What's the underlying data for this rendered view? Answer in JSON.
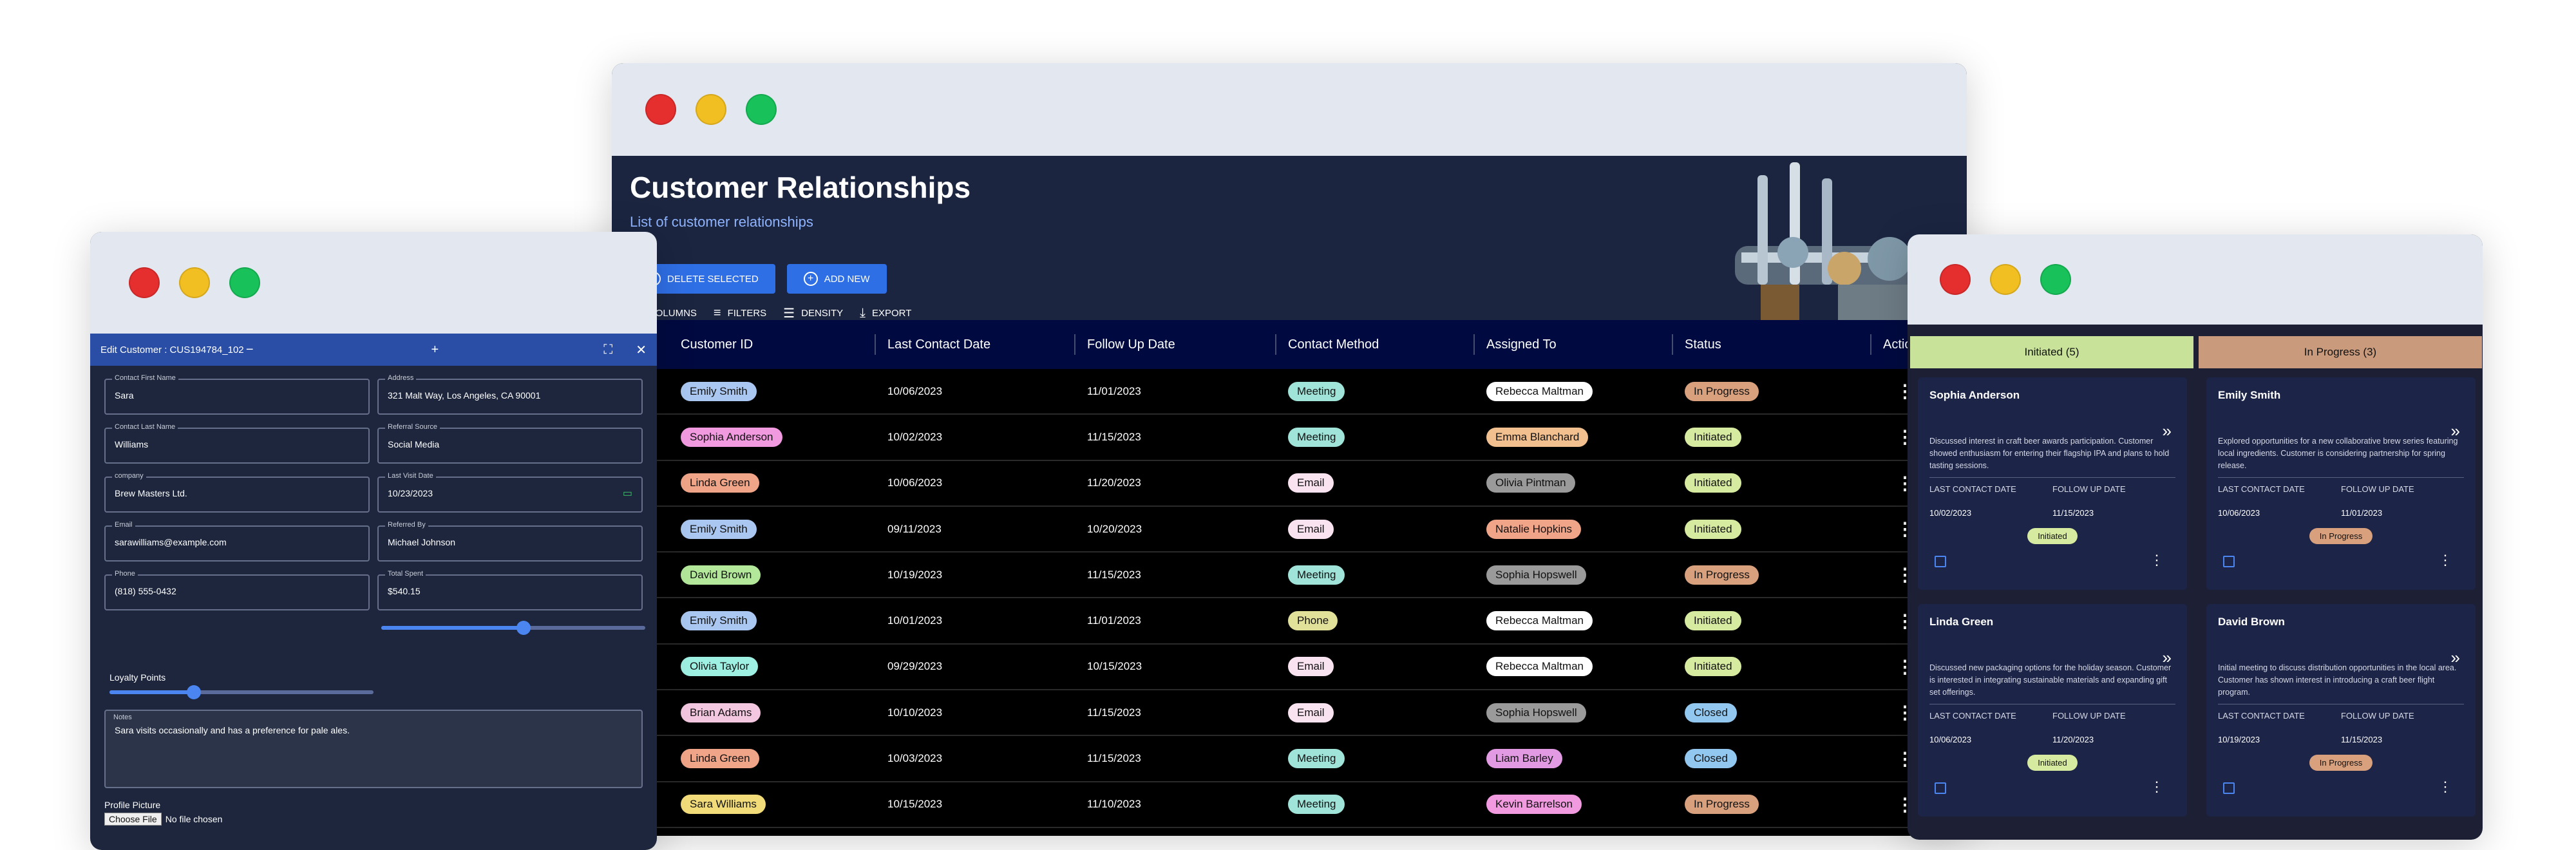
{
  "main": {
    "title": "Customer Relationships",
    "subtitle": "List of customer relationships",
    "buttons": {
      "delete": "DELETE SELECTED",
      "add": "ADD NEW"
    },
    "toolbar": {
      "columns": "COLUMNS",
      "filters": "FILTERS",
      "density": "DENSITY",
      "export": "EXPORT"
    },
    "columns": [
      "Customer ID",
      "Last Contact Date",
      "Follow Up Date",
      "Contact Method",
      "Assigned To",
      "Status",
      "Actions"
    ],
    "rows": [
      {
        "customer": "Emily Smith",
        "cc": "#a9c7f0",
        "last": "10/06/2023",
        "follow": "11/01/2023",
        "method": "Meeting",
        "mc": "#9fe3d9",
        "assigned": "Rebecca Maltman",
        "ac": "#ffffff",
        "status": "In Progress",
        "sc": "#d8a07c"
      },
      {
        "customer": "Sophia Anderson",
        "cc": "#f29ae0",
        "last": "10/02/2023",
        "follow": "11/15/2023",
        "method": "Meeting",
        "mc": "#9fe3d9",
        "assigned": "Emma Blanchard",
        "ac": "#f2c08f",
        "status": "Initiated",
        "sc": "#d7eba0"
      },
      {
        "customer": "Linda Green",
        "cc": "#f0a488",
        "last": "10/06/2023",
        "follow": "11/20/2023",
        "method": "Email",
        "mc": "#fae3f0",
        "assigned": "Olivia Pintman",
        "ac": "#9a9a9a",
        "status": "Initiated",
        "sc": "#d7eba0"
      },
      {
        "customer": "Emily Smith",
        "cc": "#a9c7f0",
        "last": "09/11/2023",
        "follow": "10/20/2023",
        "method": "Email",
        "mc": "#fae3f0",
        "assigned": "Natalie Hopkins",
        "ac": "#f0a488",
        "status": "Initiated",
        "sc": "#d7eba0"
      },
      {
        "customer": "David Brown",
        "cc": "#b3e89a",
        "last": "10/19/2023",
        "follow": "11/15/2023",
        "method": "Meeting",
        "mc": "#9fe3d9",
        "assigned": "Sophia Hopswell",
        "ac": "#9a9a9a",
        "status": "In Progress",
        "sc": "#d8a07c"
      },
      {
        "customer": "Emily Smith",
        "cc": "#a9c7f0",
        "last": "10/01/2023",
        "follow": "11/01/2023",
        "method": "Phone",
        "mc": "#e2e19a",
        "assigned": "Rebecca Maltman",
        "ac": "#ffffff",
        "status": "Initiated",
        "sc": "#d7eba0"
      },
      {
        "customer": "Olivia Taylor",
        "cc": "#9ef0e2",
        "last": "09/29/2023",
        "follow": "10/15/2023",
        "method": "Email",
        "mc": "#fae3f0",
        "assigned": "Rebecca Maltman",
        "ac": "#ffffff",
        "status": "Initiated",
        "sc": "#d7eba0"
      },
      {
        "customer": "Brian Adams",
        "cc": "#f4c7e0",
        "last": "10/10/2023",
        "follow": "11/15/2023",
        "method": "Email",
        "mc": "#fae3f0",
        "assigned": "Sophia Hopswell",
        "ac": "#9a9a9a",
        "status": "Closed",
        "sc": "#92c8f0"
      },
      {
        "customer": "Linda Green",
        "cc": "#f0a488",
        "last": "10/03/2023",
        "follow": "11/15/2023",
        "method": "Meeting",
        "mc": "#9fe3d9",
        "assigned": "Liam Barley",
        "ac": "#e29ae2",
        "status": "Closed",
        "sc": "#92c8f0"
      },
      {
        "customer": "Sara Williams",
        "cc": "#f2dc7a",
        "last": "10/15/2023",
        "follow": "11/10/2023",
        "method": "Meeting",
        "mc": "#9fe3d9",
        "assigned": "Kevin Barrelson",
        "ac": "#f29ae0",
        "status": "In Progress",
        "sc": "#d8a07c"
      }
    ]
  },
  "edit": {
    "dialog_title": "Edit Customer : CUS194784_102",
    "fields": {
      "first_name": {
        "label": "Contact First Name",
        "value": "Sara"
      },
      "address": {
        "label": "Address",
        "value": "321 Malt Way, Los Angeles, CA 90001"
      },
      "last_name": {
        "label": "Contact Last Name",
        "value": "Williams"
      },
      "referral": {
        "label": "Referral Source",
        "value": "Social Media"
      },
      "company": {
        "label": "company",
        "value": "Brew Masters Ltd."
      },
      "last_visit": {
        "label": "Last Visit Date",
        "value": "10/23/2023"
      },
      "email": {
        "label": "Email",
        "value": "sarawilliams@example.com"
      },
      "referred_by": {
        "label": "Referred By",
        "value": "Michael Johnson"
      },
      "phone": {
        "label": "Phone",
        "value": "(818) 555-0432"
      },
      "total_spent": {
        "label": "Total Spent",
        "value": "$540.15"
      }
    },
    "loyalty_label": "Loyalty Points",
    "notes_label": "Notes",
    "notes_value": "Sara visits occasionally and has a preference for pale ales.",
    "picture_label": "Profile Picture",
    "choose_file": "Choose File",
    "no_file": "No file chosen"
  },
  "kanban": {
    "columns": [
      {
        "title": "Initiated (5)",
        "color": "#c9e29a"
      },
      {
        "title": "In Progress (3)",
        "color": "#c99a7c"
      }
    ],
    "date_labels": {
      "last": "LAST CONTACT DATE",
      "follow": "FOLLOW UP DATE"
    },
    "cards": [
      {
        "name": "Sophia Anderson",
        "desc": "Discussed interest in craft beer awards participation. Customer showed enthusiasm for entering their flagship IPA and plans to hold tasting sessions.",
        "last": "10/02/2023",
        "follow": "11/15/2023",
        "status": "Initiated",
        "color": "#d7eba0"
      },
      {
        "name": "Emily Smith",
        "desc": "Explored opportunities for a new collaborative brew series featuring local ingredients. Customer is considering partnership for spring release.",
        "last": "10/06/2023",
        "follow": "11/01/2023",
        "status": "In Progress",
        "color": "#d8a07c"
      },
      {
        "name": "Linda Green",
        "desc": "Discussed new packaging options for the holiday season. Customer is interested in integrating sustainable materials and expanding gift set offerings.",
        "last": "10/06/2023",
        "follow": "11/20/2023",
        "status": "Initiated",
        "color": "#d7eba0"
      },
      {
        "name": "David Brown",
        "desc": "Initial meeting to discuss distribution opportunities in the local area. Customer has shown interest in introducing a craft beer flight program.",
        "last": "10/19/2023",
        "follow": "11/15/2023",
        "status": "In Progress",
        "color": "#d8a07c"
      }
    ]
  }
}
